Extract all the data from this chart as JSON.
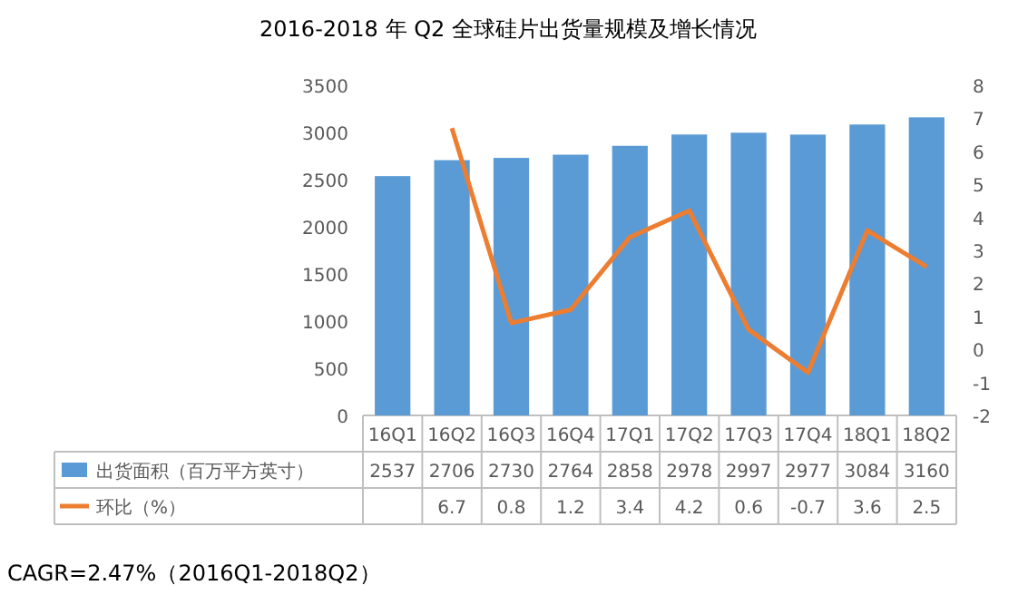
{
  "chart_data": {
    "type": "bar",
    "title": "2016-2018 年 Q2 全球硅片出货量规模及增长情况",
    "categories": [
      "16Q1",
      "16Q2",
      "16Q3",
      "16Q4",
      "17Q1",
      "17Q2",
      "17Q3",
      "17Q4",
      "18Q1",
      "18Q2"
    ],
    "series": [
      {
        "name": "出货面积（百万平方英寸）",
        "color": "#5b9bd5",
        "values": [
          2537,
          2706,
          2730,
          2764,
          2858,
          2978,
          2997,
          2977,
          3084,
          3160
        ]
      },
      {
        "name": "环比（%）",
        "type": "line",
        "axis": "y2",
        "color": "#ed7d31",
        "values": [
          null,
          6.7,
          0.8,
          1.2,
          3.4,
          4.2,
          0.6,
          -0.7,
          3.6,
          2.5
        ]
      }
    ],
    "ylim": [
      0,
      3500
    ],
    "yticks": [
      0,
      500,
      1000,
      1500,
      2000,
      2500,
      3000,
      3500
    ],
    "y2lim": [
      -2,
      8
    ],
    "y2ticks": [
      -2,
      -1,
      0,
      1,
      2,
      3,
      4,
      5,
      6,
      7,
      8
    ],
    "data_labels": true,
    "legend": "bottom",
    "grid": false,
    "marker": "none",
    "line_style": "solid",
    "annotations": [
      "CAGR=2.47%（2016Q1-2018Q2）"
    ]
  }
}
